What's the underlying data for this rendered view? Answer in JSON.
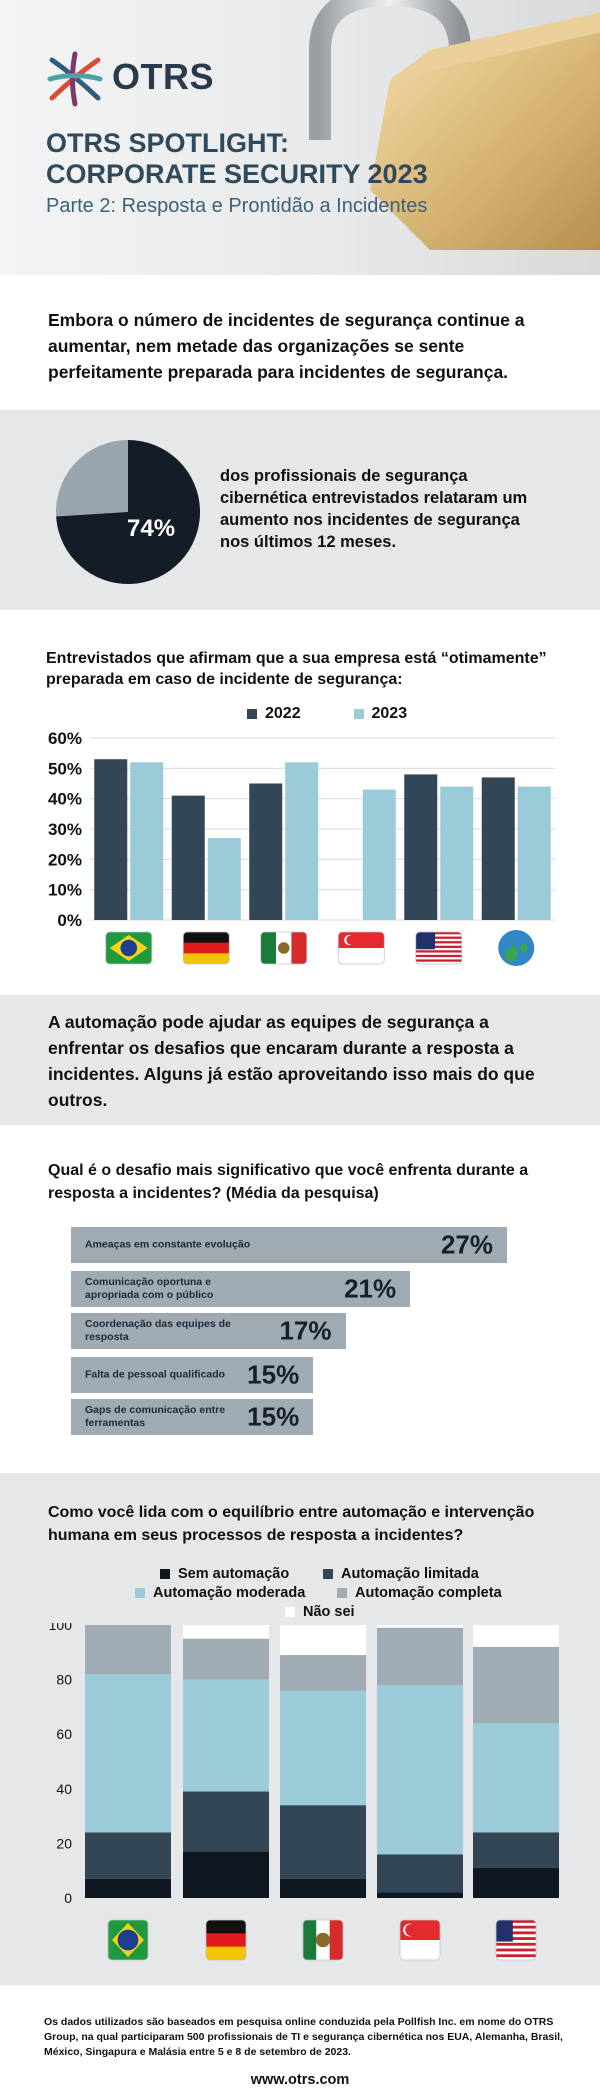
{
  "header": {
    "logo": "OTRS",
    "title": "OTRS SPOTLIGHT:\nCORPORATE SECURITY 2023",
    "subtitle": "Parte 2: Resposta e Prontidão a Incidentes"
  },
  "intro": {
    "text": "Embora o número de incidentes de segurança continue a aumentar, nem metade das organizações se sente perfeitamente preparada para incidentes de segurança."
  },
  "pie": {
    "percent_label": "74%",
    "value": 74,
    "text": "dos profissionais de segurança cibernética entrevistados relataram um aumento nos incidentes de segurança nos últimos 12 meses.",
    "colors": {
      "main": "#141d27",
      "rest": "#9aa4ac"
    }
  },
  "chart1_section": {
    "question": "Entrevistados que afirmam que a sua empresa está “otimamente” preparada em caso de incidente de segurança:"
  },
  "automation_text": {
    "text": "A automação pode ajudar as equipes de segurança a enfrentar os desafios que encaram durante a resposta a incidentes. Alguns já estão aproveitando isso mais do que outros."
  },
  "challenges": {
    "question": "Qual é o desafio mais significativo que você enfrenta durante a resposta a incidentes? (Média da pesquisa)",
    "items": [
      {
        "label": "Ameaças em constante evolução",
        "value_label": "27%"
      },
      {
        "label": "Comunicação oportuna e apropriada com o público",
        "value_label": "21%"
      },
      {
        "label": "Coordenação das equipes de resposta",
        "value_label": "17%"
      },
      {
        "label": "Falta de pessoal qualificado",
        "value_label": "15%"
      },
      {
        "label": "Gaps de comunicação entre ferramentas",
        "value_label": "15%"
      }
    ]
  },
  "chart3_section": {
    "question": "Como você lida com o equilíbrio entre automação e intervenção humana em seus processos de resposta a incidentes?"
  },
  "footer": {
    "note": "Os dados utilizados são baseados em pesquisa online conduzida pela Pollfish Inc. em nome do OTRS Group, na qual participaram 500 profissionais de TI e segurança cibernética nos EUA, Alemanha, Brasil, México, Singapura e Malásia entre 5 e 8 de setembro de 2023.",
    "url": "www.otrs.com"
  },
  "chart_data": [
    {
      "type": "bar",
      "categories": [
        "Brasil",
        "Alemanha",
        "México",
        "Singapura",
        "EUA",
        "Global"
      ],
      "category_icons": [
        "flag-brazil",
        "flag-germany",
        "flag-mexico",
        "flag-singapore",
        "flag-usa",
        "globe"
      ],
      "series": [
        {
          "name": "2022",
          "color": "#324656",
          "values": [
            53,
            41,
            45,
            null,
            48,
            47
          ]
        },
        {
          "name": "2023",
          "color": "#9bcbd8",
          "values": [
            52,
            27,
            52,
            43,
            44,
            44
          ]
        }
      ],
      "ylim": [
        0,
        60
      ],
      "yticks": [
        "0%",
        "10%",
        "20%",
        "30%",
        "40%",
        "50%",
        "60%"
      ],
      "legend": "top-center",
      "grid": true
    },
    {
      "type": "bar",
      "categories": [
        "Ameaças em constante evolução",
        "Comunicação oportuna e apropriada com o público",
        "Coordenação das equipes de resposta",
        "Falta de pessoal qualificado",
        "Gaps de comunicação entre ferramentas"
      ],
      "values": [
        27,
        21,
        17,
        15,
        15
      ],
      "orientation": "horizontal",
      "color": "#9faab2"
    },
    {
      "type": "bar",
      "stacked": true,
      "categories": [
        "Brasil",
        "Alemanha",
        "México",
        "Singapura",
        "EUA"
      ],
      "category_icons": [
        "flag-brazil",
        "flag-germany",
        "flag-mexico",
        "flag-singapore",
        "flag-usa"
      ],
      "series": [
        {
          "name": "Sem automação",
          "color": "#0f1820",
          "values": [
            7,
            17,
            7,
            2,
            11
          ]
        },
        {
          "name": "Automação limitada",
          "color": "#324656",
          "values": [
            17,
            22,
            27,
            14,
            13
          ]
        },
        {
          "name": "Automação moderada",
          "color": "#9bcbd8",
          "values": [
            58,
            41,
            42,
            62,
            40
          ]
        },
        {
          "name": "Automação completa",
          "color": "#a1abb3",
          "values": [
            18,
            15,
            13,
            21,
            28
          ]
        },
        {
          "name": "Não sei",
          "color": "#ffffff",
          "values": [
            0,
            5,
            11,
            1,
            8
          ]
        }
      ],
      "ylim": [
        0,
        100
      ],
      "yticks": [
        "0",
        "20",
        "40",
        "60",
        "80",
        "100"
      ],
      "legend": "top-center"
    }
  ]
}
